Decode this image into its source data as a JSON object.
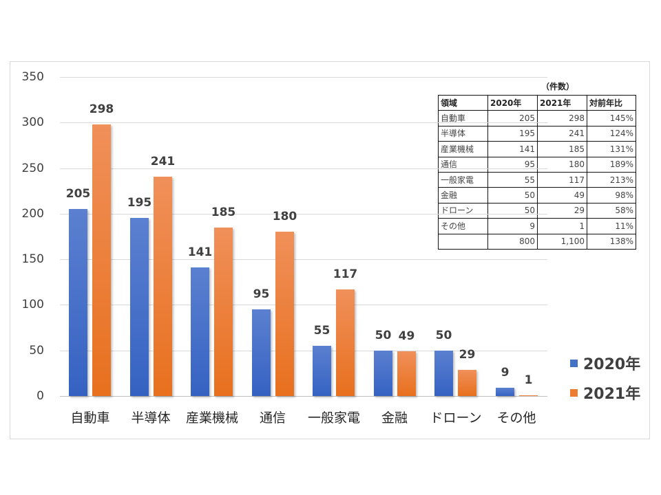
{
  "chart_data": {
    "type": "bar",
    "title": "",
    "xlabel": "",
    "ylabel": "",
    "ylim": [
      0,
      350
    ],
    "yticks": [
      0,
      50,
      100,
      150,
      200,
      250,
      300,
      350
    ],
    "ytick_labels": [
      "0",
      "50",
      "100",
      "150",
      "200",
      "250",
      "300",
      "350"
    ],
    "grid": true,
    "legend_position": "right",
    "categories": [
      "自動車",
      "半導体",
      "産業機械",
      "通信",
      "一般家電",
      "金融",
      "ドローン",
      "その他"
    ],
    "series": [
      {
        "name": "2020年",
        "color": "#4472c4",
        "values": [
          205,
          195,
          141,
          95,
          55,
          50,
          50,
          9
        ]
      },
      {
        "name": "2021年",
        "color": "#ed7d31",
        "values": [
          298,
          241,
          185,
          180,
          117,
          49,
          29,
          1
        ]
      }
    ],
    "data_labels": true
  },
  "legend": {
    "items": [
      {
        "label": "2020年",
        "color": "#4472c4"
      },
      {
        "label": "2021年",
        "color": "#ed7d31"
      }
    ]
  },
  "table": {
    "unit": "（件数）",
    "headers": [
      "領域",
      "2020年",
      "2021年",
      "対前年比"
    ],
    "rows": [
      [
        "自動車",
        "205",
        "298",
        "145%"
      ],
      [
        "半導体",
        "195",
        "241",
        "124%"
      ],
      [
        "産業機械",
        "141",
        "185",
        "131%"
      ],
      [
        "通信",
        "95",
        "180",
        "189%"
      ],
      [
        "一般家電",
        "55",
        "117",
        "213%"
      ],
      [
        "金融",
        "50",
        "49",
        "98%"
      ],
      [
        "ドローン",
        "50",
        "29",
        "58%"
      ],
      [
        "その他",
        "9",
        "1",
        "11%"
      ],
      [
        "",
        "800",
        "1,100",
        "138%"
      ]
    ]
  }
}
